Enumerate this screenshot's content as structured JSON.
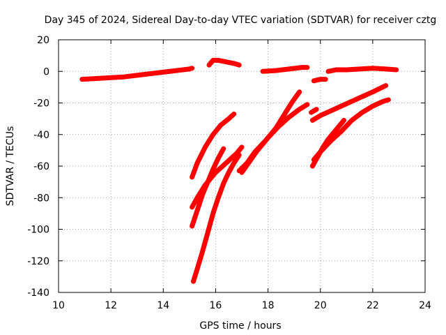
{
  "chart_data": {
    "type": "scatter",
    "title": "Day 345 of 2024, Sidereal Day-to-day VTEC variation (SDTVAR) for receiver cztg",
    "xlabel": "GPS time / hours",
    "ylabel": "SDTVAR / TECUs",
    "xlim": [
      10,
      24
    ],
    "ylim": [
      -140,
      20
    ],
    "xticks": [
      10,
      12,
      14,
      16,
      18,
      20,
      22,
      24
    ],
    "yticks": [
      20,
      0,
      -20,
      -40,
      -60,
      -80,
      -100,
      -120,
      -140
    ],
    "grid": true,
    "colors": {
      "series": "#ff0000"
    },
    "series": [
      {
        "x": [
          10.9,
          11.5,
          12.0,
          12.5,
          13.0,
          13.5,
          14.0,
          14.5,
          15.0,
          15.1
        ],
        "y": [
          -5,
          -4.5,
          -4,
          -3.5,
          -2.5,
          -1.5,
          -0.5,
          0.5,
          1.5,
          2
        ]
      },
      {
        "x": [
          15.75,
          15.9,
          16.1,
          16.4,
          16.7,
          16.9
        ],
        "y": [
          4,
          7,
          7,
          6,
          5,
          4
        ]
      },
      {
        "x": [
          17.8,
          18.3,
          18.8,
          19.3,
          19.5
        ],
        "y": [
          0,
          0.5,
          1.5,
          2.5,
          2.5
        ]
      },
      {
        "x": [
          19.75,
          20.0,
          20.2
        ],
        "y": [
          -6,
          -5,
          -5
        ]
      },
      {
        "x": [
          20.3,
          20.6,
          21.0,
          21.5,
          22.0,
          22.5,
          22.9
        ],
        "y": [
          0,
          1,
          1,
          1.5,
          2,
          1.5,
          1
        ]
      },
      {
        "x": [
          15.1,
          15.3,
          15.6,
          15.9,
          16.2,
          16.5,
          16.7
        ],
        "y": [
          -67,
          -58,
          -48,
          -40,
          -34,
          -30,
          -27
        ]
      },
      {
        "x": [
          15.1,
          15.3,
          15.5,
          15.7,
          15.9,
          16.1,
          16.3
        ],
        "y": [
          -98,
          -88,
          -78,
          -70,
          -62,
          -55,
          -49
        ]
      },
      {
        "x": [
          15.1,
          15.3,
          15.6,
          16.0,
          16.4,
          16.8,
          17.0
        ],
        "y": [
          -86,
          -80,
          -72,
          -64,
          -58,
          -52,
          -48
        ]
      },
      {
        "x": [
          15.15,
          15.3,
          15.5,
          15.7,
          15.9,
          16.1,
          16.3,
          16.5,
          16.7,
          16.9
        ],
        "y": [
          -133,
          -125,
          -114,
          -102,
          -90,
          -80,
          -71,
          -64,
          -58,
          -53
        ]
      },
      {
        "x": [
          16.9,
          17.2,
          17.5,
          17.9,
          18.3,
          18.6,
          18.9,
          19.2
        ],
        "y": [
          -63,
          -58,
          -51,
          -44,
          -36,
          -28,
          -20,
          -13
        ]
      },
      {
        "x": [
          17.0,
          17.3,
          17.6,
          18.0,
          18.4,
          18.8,
          19.2,
          19.5
        ],
        "y": [
          -64,
          -57,
          -50,
          -42,
          -35,
          -29,
          -24,
          -21
        ]
      },
      {
        "x": [
          19.65,
          19.85
        ],
        "y": [
          -26,
          -24
        ]
      },
      {
        "x": [
          19.7,
          20.0,
          20.4,
          20.8,
          21.2,
          21.6,
          22.0,
          22.5
        ],
        "y": [
          -31,
          -28,
          -25,
          -22,
          -19,
          -16,
          -13,
          -9
        ]
      },
      {
        "x": [
          19.7,
          19.9,
          20.1,
          20.3,
          20.6,
          20.9
        ],
        "y": [
          -60,
          -54,
          -48,
          -43,
          -37,
          -31
        ]
      },
      {
        "x": [
          19.75,
          20.0,
          20.4,
          20.8,
          21.2,
          21.6,
          22.0,
          22.4,
          22.6
        ],
        "y": [
          -56,
          -51,
          -44,
          -38,
          -31,
          -26,
          -22,
          -19,
          -18
        ]
      }
    ]
  }
}
